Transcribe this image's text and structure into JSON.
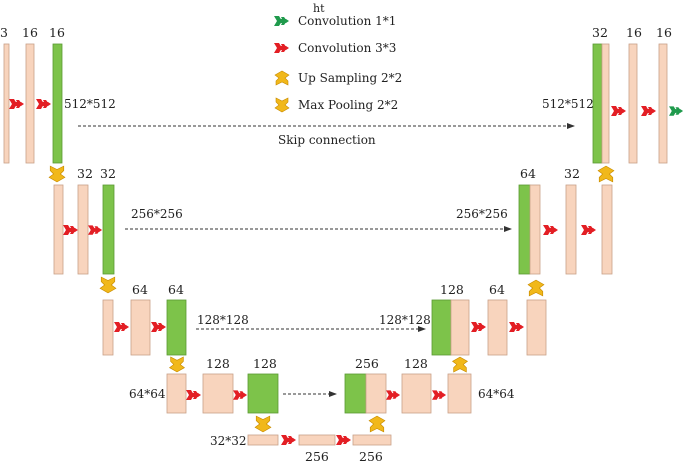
{
  "header_text": "ht",
  "legend": [
    {
      "label": "Convolution 1*1",
      "icon": "conv1x1-arrow-icon"
    },
    {
      "label": "Convolution 3*3",
      "icon": "conv3x3-arrow-icon"
    },
    {
      "label": "Up Sampling 2*2",
      "icon": "upsampling-icon"
    },
    {
      "label": "Max Pooling 2*2",
      "icon": "maxpooling-icon"
    }
  ],
  "skip_label": "Skip connection",
  "resolutions": {
    "l1_left": "512*512",
    "l1_right": "512*512",
    "l2_left": "256*256",
    "l2_right": "256*256",
    "l3_left": "128*128",
    "l3_right": "128*128",
    "l4_left": "64*64",
    "l4_right": "64*64",
    "l5": "32*32"
  },
  "channels": {
    "enc1": [
      "3",
      "16",
      "16"
    ],
    "enc2": [
      "32",
      "32"
    ],
    "enc3": [
      "64",
      "64"
    ],
    "enc4": [
      "128",
      "128"
    ],
    "bottleneck": [
      "256",
      "256"
    ],
    "dec4": [
      "256",
      "128"
    ],
    "dec3": [
      "128",
      "64"
    ],
    "dec2": [
      "64",
      "32"
    ],
    "dec1": [
      "32",
      "16",
      "16"
    ]
  },
  "colors": {
    "feature_map": "#f8d4bd",
    "feature_map_border": "#c8a088",
    "skip_feature": "#7dc34a",
    "conv3x3": "#e31e24",
    "conv1x1": "#1f9a4c",
    "sampling": "#f1b81a",
    "connection": "#333333"
  }
}
